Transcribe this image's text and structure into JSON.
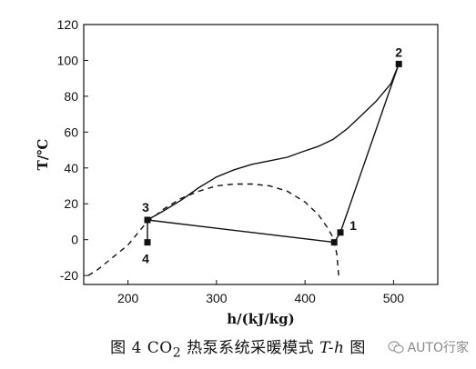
{
  "chart_data": {
    "type": "line",
    "xlabel": "h/(kJ/kg)",
    "ylabel": "T/℃",
    "xlim": [
      150,
      550
    ],
    "ylim": [
      -25,
      120
    ],
    "xticks": [
      200,
      300,
      400,
      500
    ],
    "yticks": [
      -20,
      0,
      20,
      40,
      60,
      80,
      100,
      120
    ],
    "grid": false,
    "series": [
      {
        "style": "dashed",
        "x": [
          155,
          165,
          180,
          200,
          220,
          240,
          260,
          280,
          300,
          320,
          340,
          360,
          380,
          400,
          415,
          425,
          432,
          436,
          438
        ],
        "y": [
          -20,
          -17,
          -11,
          -3,
          9,
          17,
          23,
          27,
          30,
          31,
          31,
          30,
          27,
          21,
          14,
          7,
          1,
          -8,
          -20
        ]
      },
      {
        "style": "solid",
        "x": [
          222,
          222,
          433,
          440,
          506,
          497,
          480,
          463,
          448,
          432,
          415,
          397,
          380,
          360,
          340,
          320,
          300,
          280,
          260,
          240,
          222
        ],
        "y": [
          -1.5,
          11,
          -1.5,
          4,
          98,
          87,
          77,
          69,
          62,
          56,
          52,
          49,
          46,
          44,
          42,
          39,
          35,
          29,
          22,
          16,
          11
        ]
      }
    ],
    "points": [
      {
        "label": "1",
        "x": 440,
        "y": 4
      },
      {
        "label": "2",
        "x": 506,
        "y": 98
      },
      {
        "label": "3",
        "x": 222,
        "y": 11
      },
      {
        "label": "4",
        "x": 222,
        "y": -1.5
      }
    ]
  },
  "caption": {
    "prefix": "图 4  CO",
    "sub": "2",
    "middle": " 热泵系统采暖模式 ",
    "italic": "T-h",
    "suffix": " 图"
  },
  "watermark": {
    "text": "AUTO行家",
    "icon": "wechat-icon"
  }
}
